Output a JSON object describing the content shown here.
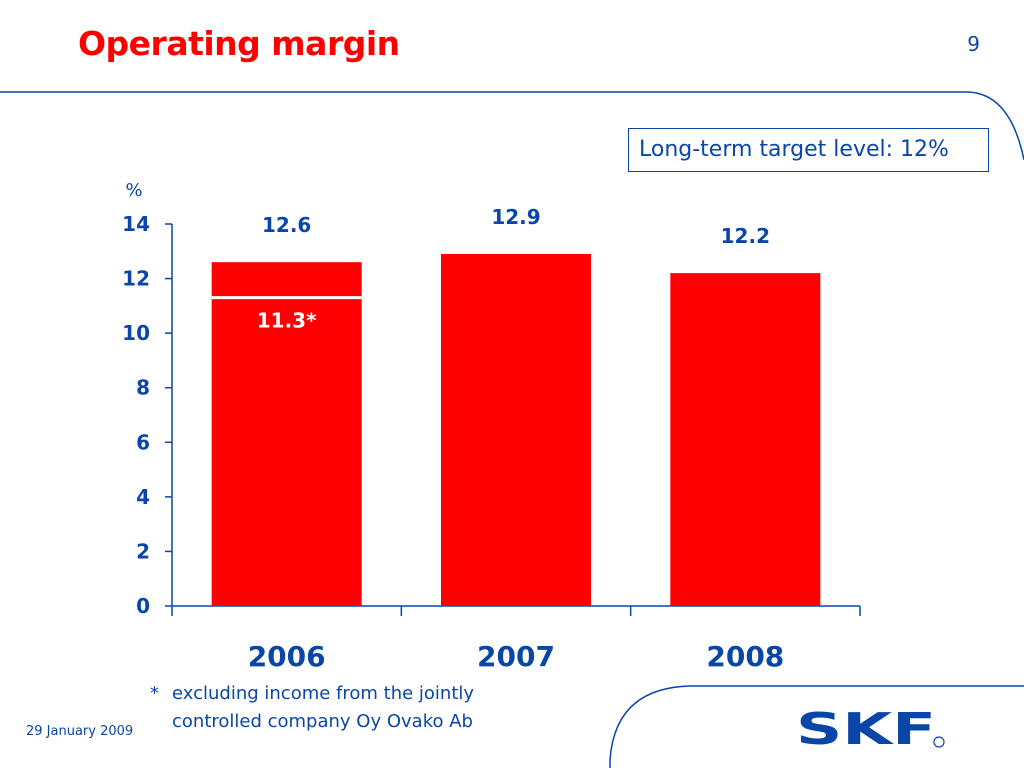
{
  "slide": {
    "title": "Operating margin",
    "page_number": "9",
    "target_box": "Long-term target level: 12%",
    "footnote_marker": "*",
    "footnote_text": "excluding income from the jointly controlled company Oy Ovako Ab",
    "date": "29 January 2009",
    "logo_text": "SKF"
  },
  "colors": {
    "bar": "#ff0000",
    "text_blue": "#0a46a8",
    "title_red": "#ff0000",
    "divider_line": "#ffffff"
  },
  "chart_data": {
    "type": "bar",
    "title": "",
    "ylabel": "%",
    "categories": [
      "2006",
      "2007",
      "2008"
    ],
    "values": [
      12.6,
      12.9,
      12.2
    ],
    "data_labels": [
      "12.6",
      "12.9",
      "12.2"
    ],
    "inner_marker": {
      "category": "2006",
      "value": 11.3,
      "label": "11.3*"
    },
    "ylim": [
      0,
      14
    ],
    "yticks": [
      0,
      2,
      4,
      6,
      8,
      10,
      12,
      14
    ],
    "grid": false,
    "legend": "none"
  }
}
